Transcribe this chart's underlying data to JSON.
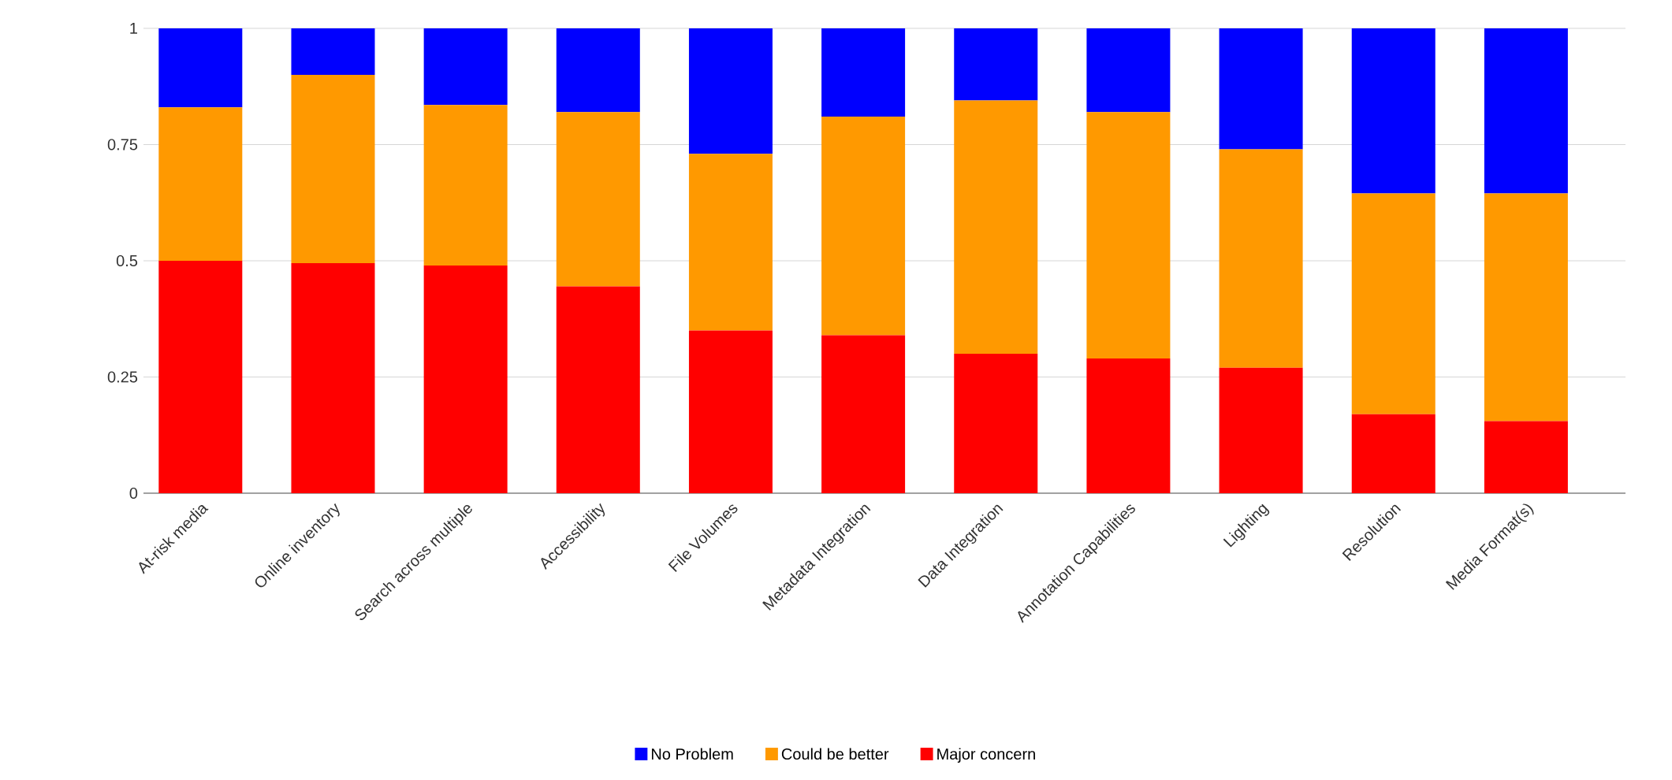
{
  "chart_data": {
    "type": "bar",
    "stacked": true,
    "categories": [
      "At-risk media",
      "Online inventory",
      "Search across multiple",
      "Accessibility",
      "File Volumes",
      "Metadata Integration",
      "Data Integration",
      "Annotation Capabilities",
      "Lighting",
      "Resolution",
      "Media Format(s)"
    ],
    "series": [
      {
        "name": "Major concern",
        "color": "#ff0000",
        "values": [
          0.5,
          0.495,
          0.49,
          0.445,
          0.35,
          0.34,
          0.3,
          0.29,
          0.27,
          0.17,
          0.155
        ]
      },
      {
        "name": "Could be better",
        "color": "#ff9900",
        "values": [
          0.33,
          0.405,
          0.345,
          0.375,
          0.38,
          0.47,
          0.545,
          0.53,
          0.47,
          0.475,
          0.49
        ]
      },
      {
        "name": "No Problem",
        "color": "#0000ff",
        "values": [
          0.17,
          0.1,
          0.165,
          0.18,
          0.27,
          0.19,
          0.155,
          0.18,
          0.26,
          0.355,
          0.355
        ]
      }
    ],
    "ylim": [
      0,
      1
    ],
    "yticks": [
      0,
      0.25,
      0.5,
      0.75,
      1
    ],
    "grid": "y",
    "legend": "bottom"
  }
}
